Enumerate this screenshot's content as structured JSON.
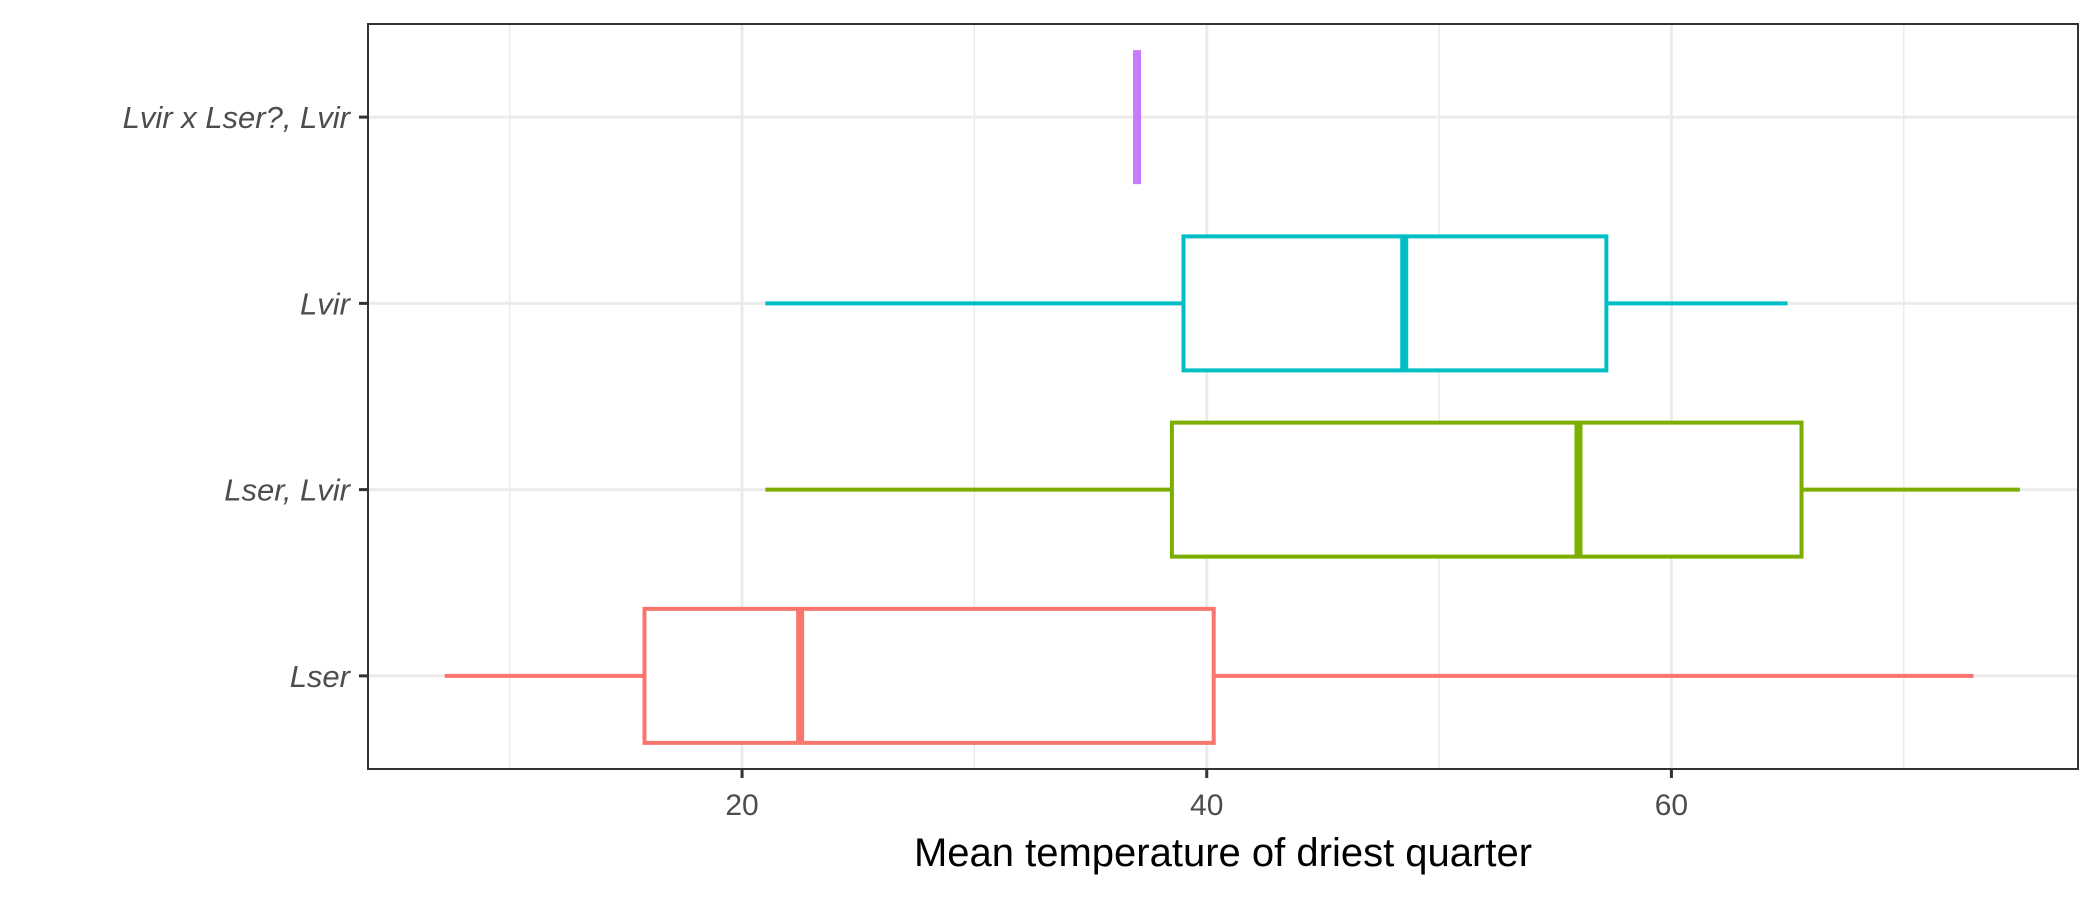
{
  "chart_data": {
    "type": "boxplot",
    "orientation": "horizontal",
    "title": "",
    "xlabel": "Mean temperature of driest quarter",
    "ylabel": "",
    "xlim": [
      3.9,
      77.5
    ],
    "x_ticks": [
      20,
      40,
      60
    ],
    "x_minor_gridlines": [
      10,
      30,
      50,
      70
    ],
    "grid": true,
    "legend": "none",
    "categories": [
      "Lser",
      "Lser, Lvir",
      "Lvir",
      "Lvir x Lser?, Lvir"
    ],
    "series": [
      {
        "category": "Lser",
        "color": "#F8766D",
        "whisker_low": 7.2,
        "q1": 15.8,
        "median": 22.5,
        "q3": 40.3,
        "whisker_high": 73.0
      },
      {
        "category": "Lser, Lvir",
        "color": "#7CAE00",
        "whisker_low": 21.0,
        "q1": 38.5,
        "median": 56.0,
        "q3": 65.6,
        "whisker_high": 75.0
      },
      {
        "category": "Lvir",
        "color": "#00BFC4",
        "whisker_low": 21.0,
        "q1": 39.0,
        "median": 48.5,
        "q3": 57.2,
        "whisker_high": 65.0
      },
      {
        "category": "Lvir x Lser?, Lvir",
        "color": "#C77CFF",
        "whisker_low": 37.0,
        "q1": 37.0,
        "median": 37.0,
        "q3": 37.0,
        "whisker_high": 37.0
      }
    ]
  }
}
